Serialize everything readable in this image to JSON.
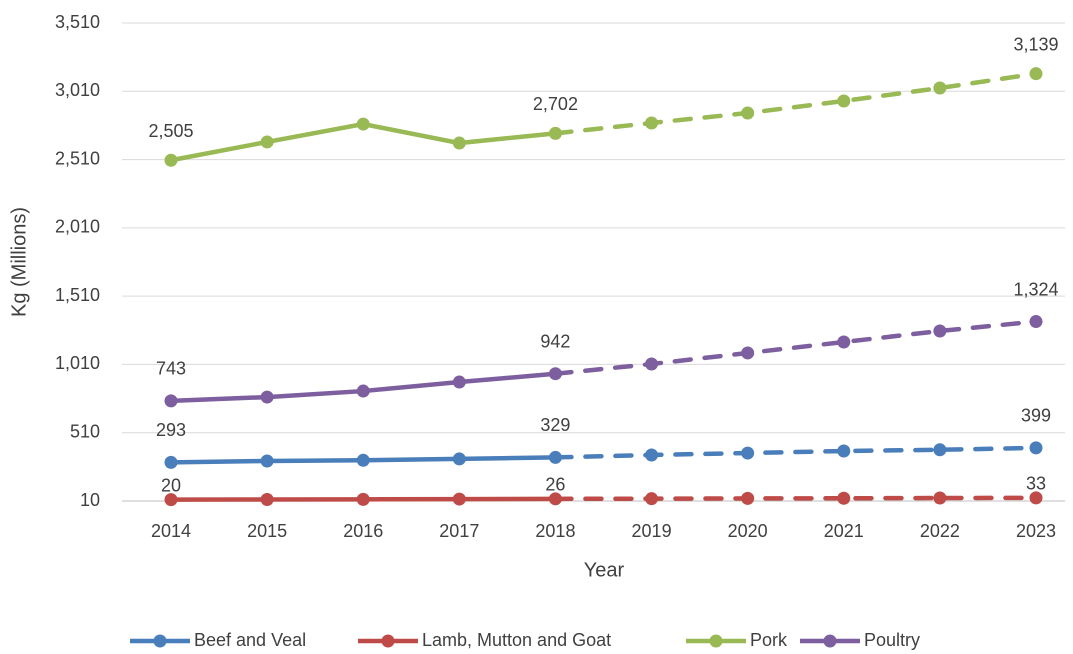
{
  "chart_data": {
    "type": "line",
    "x_label": "Year",
    "y_label": "Kg (Millions)",
    "categories": [
      "2014",
      "2015",
      "2016",
      "2017",
      "2018",
      "2019",
      "2020",
      "2021",
      "2022",
      "2023"
    ],
    "ylim": [
      10,
      3510
    ],
    "yticks": [
      {
        "value": 10,
        "label": "10"
      },
      {
        "value": 510,
        "label": "510"
      },
      {
        "value": 1010,
        "label": "1,010"
      },
      {
        "value": 1510,
        "label": "1,510"
      },
      {
        "value": 2010,
        "label": "2,010"
      },
      {
        "value": 2510,
        "label": "2,510"
      },
      {
        "value": 3010,
        "label": "3,010"
      },
      {
        "value": 3510,
        "label": "3,510"
      }
    ],
    "grid": true,
    "legend": "bottom",
    "dashed_from_index": 4,
    "series": [
      {
        "name": "Beef and Veal",
        "color": "#4a7ebb",
        "values": [
          293,
          303,
          308,
          318,
          329,
          347,
          361,
          376,
          385,
          399
        ],
        "value_labels": [
          "293",
          null,
          null,
          null,
          "329",
          null,
          null,
          null,
          null,
          "399"
        ]
      },
      {
        "name": "Lamb, Mutton and Goat",
        "color": "#be4b48",
        "values": [
          20,
          21,
          22,
          24,
          26,
          27,
          29,
          30,
          32,
          33
        ],
        "value_labels": [
          "20",
          null,
          null,
          null,
          "26",
          null,
          null,
          null,
          null,
          "33"
        ]
      },
      {
        "name": "Pork",
        "color": "#98b954",
        "values": [
          2505,
          2639,
          2770,
          2631,
          2702,
          2778,
          2851,
          2939,
          3034,
          3139
        ],
        "value_labels": [
          "2,505",
          null,
          null,
          null,
          "2,702",
          null,
          null,
          null,
          null,
          "3,139"
        ]
      },
      {
        "name": "Poultry",
        "color": "#7d5fa0",
        "values": [
          743,
          771,
          815,
          881,
          942,
          1013,
          1094,
          1174,
          1255,
          1324
        ],
        "value_labels": [
          "743",
          null,
          null,
          null,
          "942",
          null,
          null,
          null,
          null,
          "1,324"
        ]
      }
    ]
  }
}
